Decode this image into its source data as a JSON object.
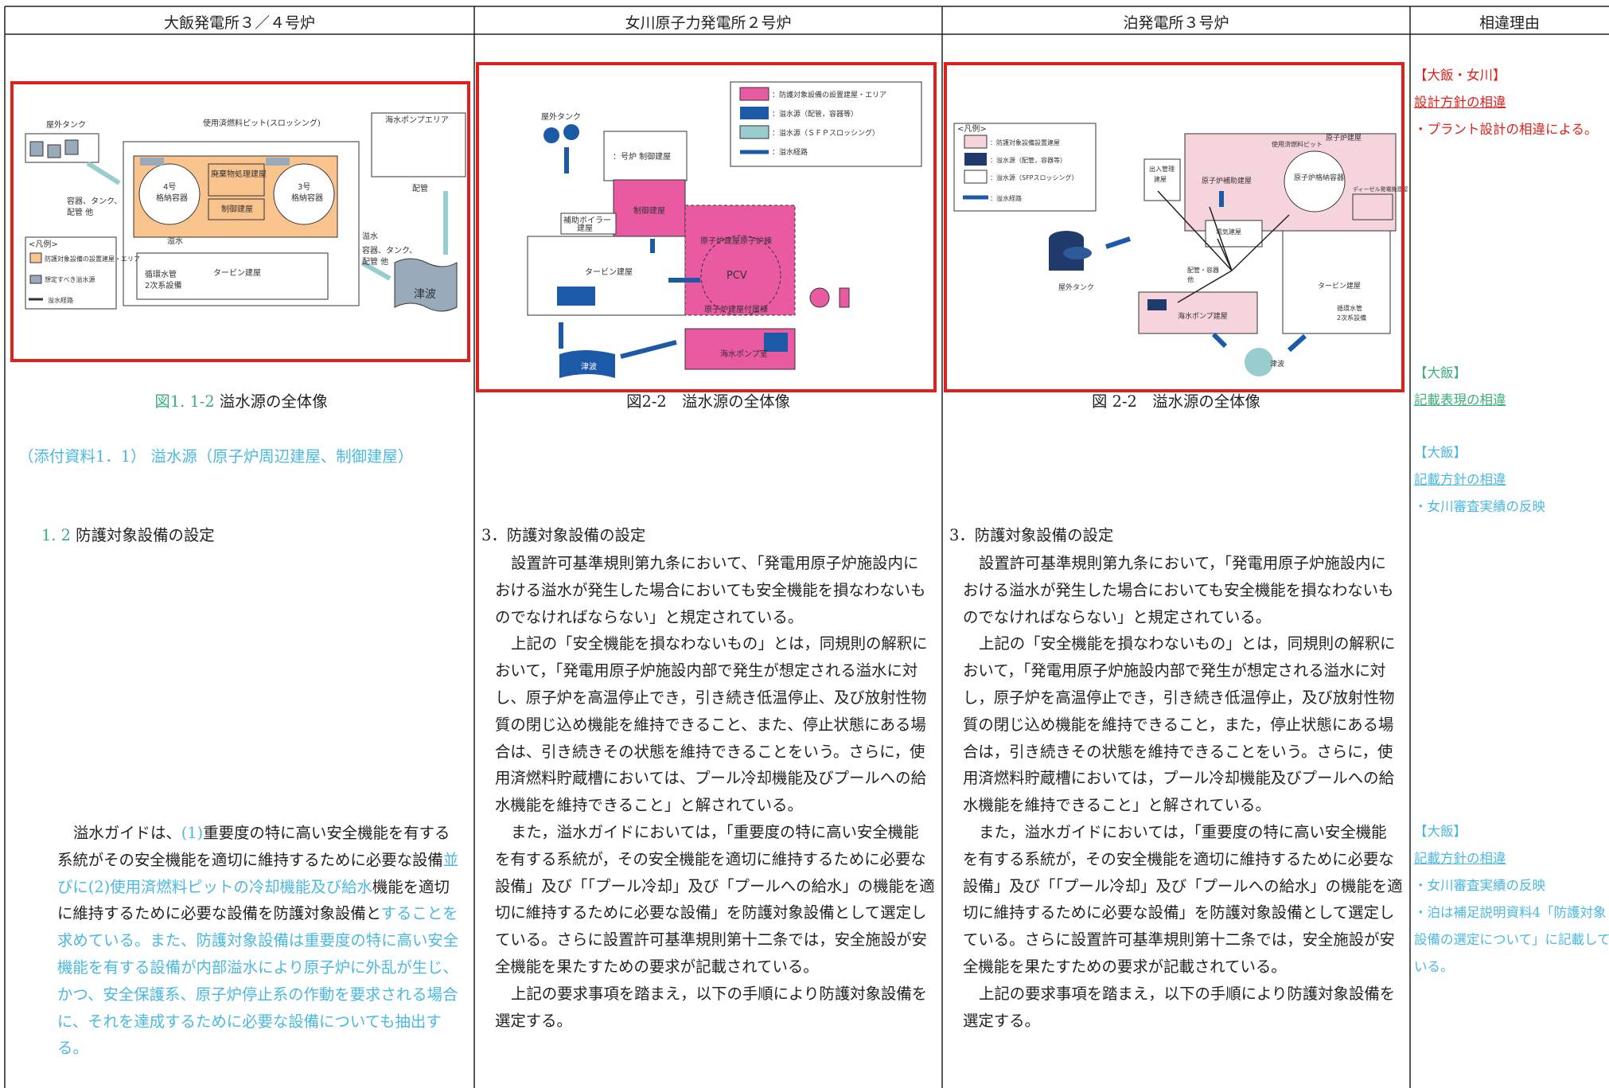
{
  "header": [
    "大飯発電所３／４号炉",
    "女川原子力発電所２号炉",
    "泊発電所３号炉",
    "相違理由"
  ],
  "columns": [
    {
      "figure_labels": [
        "屋外タンク",
        "使用済燃料ピット(スロッシング)",
        "海水ポンプエリア",
        "4号",
        "格納容器",
        "3号",
        "格納容器",
        "廃棄物処理建屋",
        "制御建屋",
        "容器、タンク、",
        "配管 他",
        "溢水",
        "溢水",
        "容器、タンク、",
        "配管 他",
        "タービン建屋",
        "循環水管",
        "2次系設備",
        "配管",
        "津波",
        "<凡例>",
        "防護対象設備の設置建屋・エリア",
        "想定すべき溢水源",
        "溢水経路"
      ],
      "caption": [
        {
          "text": "図1. 1-2",
          "color": "#3cae7a"
        },
        {
          "text": " 溢水源の全体像"
        }
      ],
      "attachment": [
        {
          "text": "（添付資料1．1） 溢水源（原子炉周辺建屋、制御建屋）",
          "color": "#4ab8e0"
        }
      ],
      "heading": [
        {
          "text": "1. 2",
          "color": "#3cae7a"
        },
        {
          "text": " 防護対象設備の設定"
        }
      ],
      "body": [
        [
          [
            {
              "text": "溢水ガイドは、"
            },
            {
              "text": "(1)",
              "color": "#4ab8e0"
            },
            {
              "text": "重要度の特に高い安全機能を有する"
            }
          ],
          [
            {
              "text": "系統がその安全機能を適切に維持するために必要な設備"
            },
            {
              "text": "並",
              "color": "#4ab8e0"
            }
          ],
          [
            {
              "text": "びに(2)使用済燃料ピットの冷却機能及び給水",
              "color": "#4ab8e0"
            },
            {
              "text": "機能を適切"
            }
          ],
          [
            {
              "text": "に維持するために必要な設備を防護対象設備と"
            },
            {
              "text": "することを",
              "color": "#4ab8e0"
            }
          ],
          [
            {
              "text": "求めている。また、防護対象設備は重要度の特に高い安全",
              "color": "#4ab8e0"
            }
          ],
          [
            {
              "text": "機能を有する設備が内部溢水により原子炉に外乱が生じ、",
              "color": "#4ab8e0"
            }
          ],
          [
            {
              "text": "かつ、安全保護系、原子炉停止系の作動を要求される場合",
              "color": "#4ab8e0"
            }
          ],
          [
            {
              "text": "に、それを達成するために必要な設備についても抽出す",
              "color": "#4ab8e0"
            }
          ],
          [
            {
              "text": "る。",
              "color": "#4ab8e0"
            }
          ]
        ]
      ]
    },
    {
      "figure_labels": [
        "屋外タンク",
        "：号炉 制御建屋",
        "制御建屋",
        "補助ボイラー",
        "建屋",
        "タービン建屋",
        "原子炉建屋原子炉棟",
        "PCV",
        "原子炉建屋付属棟",
        "海水ポンプ室",
        "津波",
        "：防護対象設備の設置建屋・エリア",
        "：溢水源（配管，容器等）",
        "：溢水源（ＳＦＰスロッシング）",
        "：溢水経路"
      ],
      "caption": [
        {
          "text": "図2-2　溢水源の全体像"
        }
      ],
      "heading": [
        {
          "text": "3．防護対象設備の設定"
        }
      ],
      "body": [
        [
          [
            {
              "text": "設置許可基準規則第九条において、「発電用原子炉施設内に"
            }
          ],
          [
            {
              "text": "おける溢水が発生した場合においても安全機能を損なわないも"
            }
          ],
          [
            {
              "text": "のでなければならない」と規定されている。"
            }
          ]
        ],
        [
          [
            {
              "text": "上記の「安全機能を損なわないもの」とは，同規則の解釈に"
            }
          ],
          [
            {
              "text": "おいて，「発電用原子炉施設内部で発生が想定される溢水に対"
            }
          ],
          [
            {
              "text": "し、原子炉を高温停止でき，引き続き低温停止、及び放射性物"
            }
          ],
          [
            {
              "text": "質の閉じ込め機能を維持できること、また、停止状態にある場"
            }
          ],
          [
            {
              "text": "合は、引き続きその状態を維持できることをいう。さらに，使"
            }
          ],
          [
            {
              "text": "用済燃料貯蔵槽においては、プール冷却機能及びプールへの給"
            }
          ],
          [
            {
              "text": "水機能を維持できること」と解されている。"
            }
          ]
        ],
        [
          [
            {
              "text": "また，溢水ガイドにおいては，「重要度の特に高い安全機能"
            }
          ],
          [
            {
              "text": "を有する系統が，その安全機能を適切に維持するために必要な"
            }
          ],
          [
            {
              "text": "設備」及び「「プール冷却」及び「プールへの給水」の機能を適"
            }
          ],
          [
            {
              "text": "切に維持するために必要な設備」を防護対象設備として選定し"
            }
          ],
          [
            {
              "text": "ている。さらに設置許可基準規則第十二条では，安全施設が安"
            }
          ],
          [
            {
              "text": "全機能を果たすための要求が記載されている。"
            }
          ]
        ],
        [
          [
            {
              "text": "上記の要求事項を踏まえ，以下の手順により防護対象設備を"
            }
          ],
          [
            {
              "text": "選定する。"
            }
          ]
        ]
      ]
    },
    {
      "figure_labels": [
        "<凡例>",
        "：防護対象設備設置建屋",
        "：溢水源（配管，容器等）",
        "：溢水源（SFPスロッシング）",
        "：溢水経路",
        "使用済燃料ピット",
        "原子炉建屋",
        "出入管理",
        "建屋",
        "原子炉補助建屋",
        "原子炉格納容器",
        "ディーゼル発電機建屋",
        "電気建屋",
        "配管・容器",
        "他",
        "屋外タンク",
        "タービン建屋",
        "循環水管",
        "2次系設備",
        "海水ポンプ建屋",
        "津波"
      ],
      "caption": [
        {
          "text": "図 2-2　溢水源の全体像"
        }
      ],
      "heading": [
        {
          "text": "3．防護対象設備の設定"
        }
      ],
      "body": [
        [
          [
            {
              "text": "設置許可基準規則第九条において，「発電用原子炉施設内に"
            }
          ],
          [
            {
              "text": "おける溢水が発生した場合においても安全機能を損なわないも"
            }
          ],
          [
            {
              "text": "のでなければならない」と規定されている。"
            }
          ]
        ],
        [
          [
            {
              "text": "上記の「安全機能を損なわないもの」とは，同規則の解釈に"
            }
          ],
          [
            {
              "text": "おいて，「発電用原子炉施設内部で発生が想定される溢水に対"
            }
          ],
          [
            {
              "text": "し，原子炉を高温停止でき，引き続き低温停止，及び放射性物"
            }
          ],
          [
            {
              "text": "質の閉じ込め機能を維持できること，また，停止状態にある場"
            }
          ],
          [
            {
              "text": "合は，引き続きその状態を維持できることをいう。さらに，使"
            }
          ],
          [
            {
              "text": "用済燃料貯蔵槽においては，プール冷却機能及びプールへの給"
            }
          ],
          [
            {
              "text": "水機能を維持できること」と解されている。"
            }
          ]
        ],
        [
          [
            {
              "text": "また，溢水ガイドにおいては，「重要度の特に高い安全機能"
            }
          ],
          [
            {
              "text": "を有する系統が，その安全機能を適切に維持するために必要な"
            }
          ],
          [
            {
              "text": "設備」及び「「プール冷却」及び「プールへの給水」の機能を適"
            }
          ],
          [
            {
              "text": "切に維持するために必要な設備」を防護対象設備として選定し"
            }
          ],
          [
            {
              "text": "ている。さらに設置許可基準規則第十二条では，安全施設が安"
            }
          ],
          [
            {
              "text": "全機能を果たすための要求が記載されている。"
            }
          ]
        ],
        [
          [
            {
              "text": "上記の要求事項を踏まえ，以下の手順により防護対象設備を"
            }
          ],
          [
            {
              "text": "選定する。"
            }
          ]
        ]
      ]
    },
    {
      "notes": [
        [
          [
            {
              "text": "【大飯・女川】",
              "color": "#e0201b"
            }
          ],
          [
            {
              "text": "設計方針の相違",
              "color": "#e0201b",
              "underline": true
            }
          ],
          [
            {
              "text": "・プラント設計の相違による。",
              "color": "#e0201b"
            }
          ]
        ],
        [
          [
            {
              "text": "【大飯】",
              "color": "#3cae7a"
            }
          ],
          [
            {
              "text": "記載表現の相違",
              "color": "#3cae7a",
              "underline": true
            }
          ]
        ],
        [
          [
            {
              "text": "【大飯】",
              "color": "#4ab8e0"
            }
          ],
          [
            {
              "text": "記載方針の相違",
              "color": "#4ab8e0",
              "underline": true
            }
          ],
          [
            {
              "text": "・女川審査実績の反映",
              "color": "#4ab8e0"
            }
          ]
        ],
        [
          [
            {
              "text": "【大飯】",
              "color": "#4ab8e0"
            }
          ],
          [
            {
              "text": "記載方針の相違",
              "color": "#4ab8e0",
              "underline": true
            }
          ],
          [
            {
              "text": "・女川審査実績の反映",
              "color": "#4ab8e0"
            }
          ],
          [
            {
              "text": "・泊は補足説明資料4「防護対象",
              "color": "#4ab8e0"
            }
          ],
          [
            {
              "text": "設備の選定について」に記載して",
              "color": "#4ab8e0"
            }
          ],
          [
            {
              "text": "いる。",
              "color": "#4ab8e0"
            }
          ]
        ]
      ]
    }
  ]
}
